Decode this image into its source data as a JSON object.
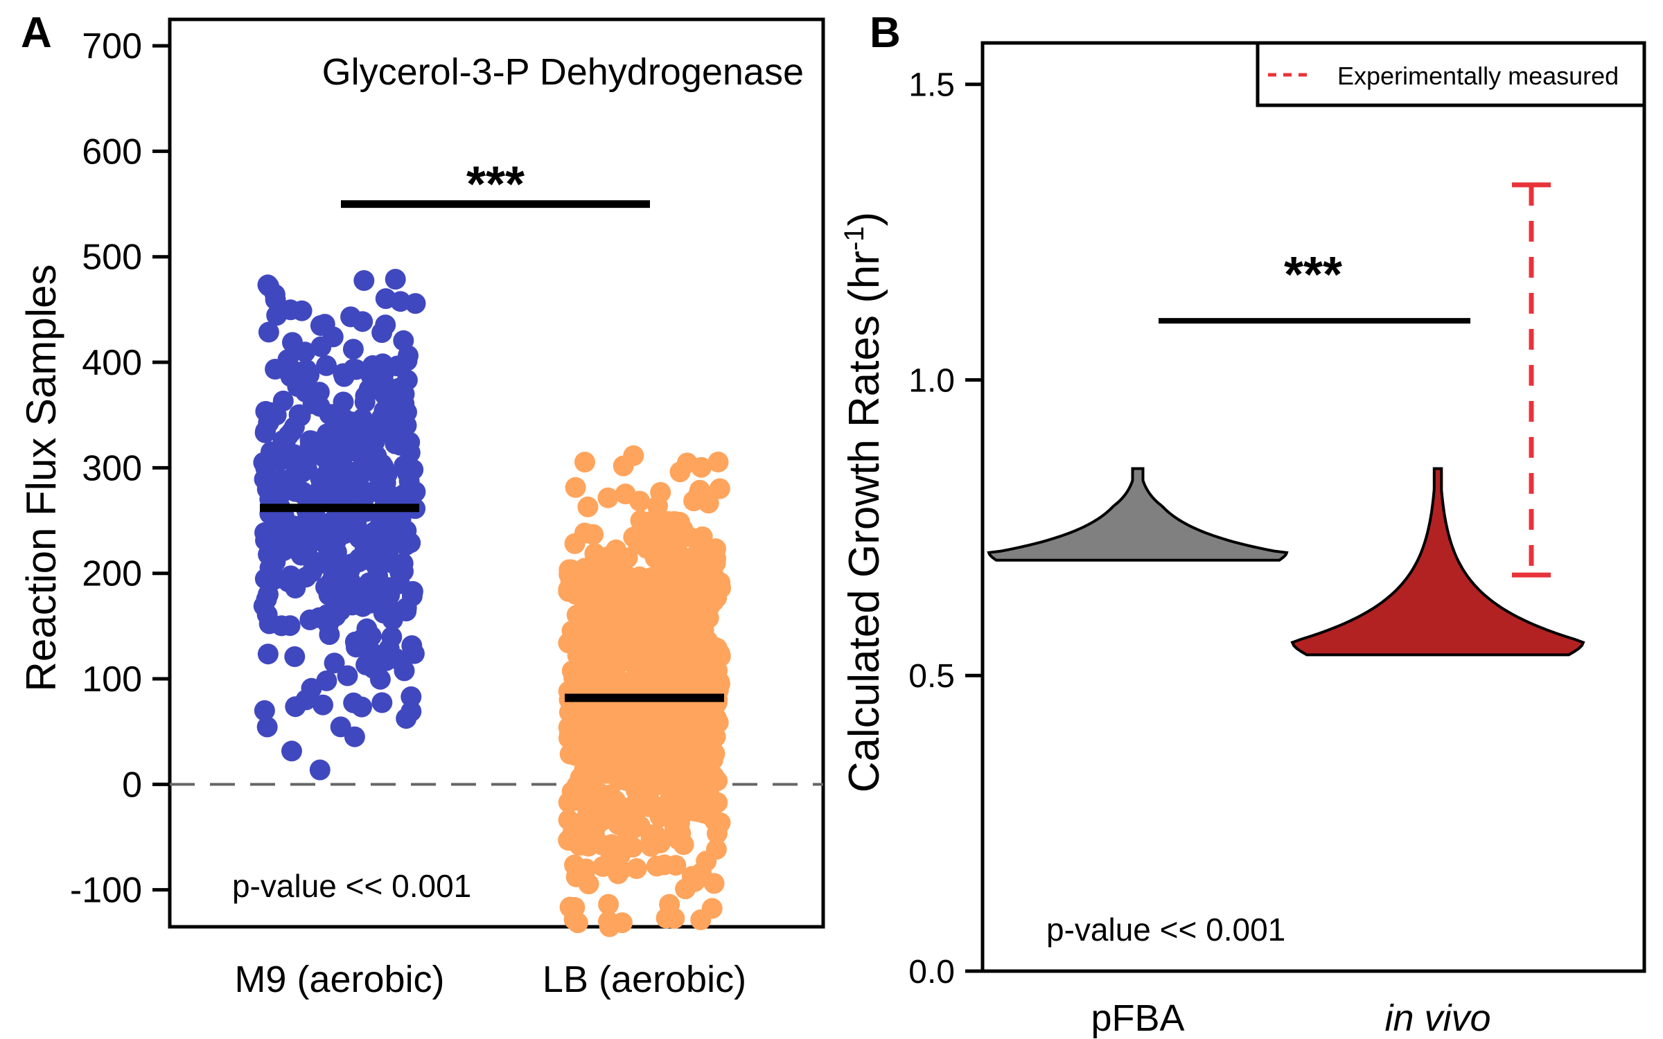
{
  "chart_data": [
    {
      "panel": "A",
      "type": "scatter",
      "title": "Glycerol-3-P Dehydrogenase",
      "ylabel": "Reaction Flux Samples",
      "ylim": [
        -135,
        725
      ],
      "yticks": [
        -100,
        0,
        100,
        200,
        300,
        400,
        500,
        600,
        700
      ],
      "reference_line": 0,
      "significance": "***",
      "significance_bar_y": 550,
      "pvalue_text": "p-value << 0.001",
      "series": [
        {
          "category": "M9 (aerobic)",
          "color": "#4048bf",
          "mean": 262,
          "min": 12,
          "max": 480,
          "n": 420
        },
        {
          "category": "LB (aerobic)",
          "color": "#ffa45c",
          "mean": 82,
          "min": -135,
          "max": 320,
          "n": 900
        }
      ],
      "categories": [
        "M9 (aerobic)",
        "LB (aerobic)"
      ]
    },
    {
      "panel": "B",
      "type": "violin",
      "ylabel": "Calculated Growth Rates (hr⁻¹)",
      "ylim": [
        0,
        1.57
      ],
      "yticks": [
        "0.0",
        "0.5",
        "1.0",
        "1.5"
      ],
      "categories": [
        "pFBA",
        "in vivo"
      ],
      "series": [
        {
          "category": "pFBA",
          "color": "#808080",
          "min": 0.695,
          "mode": 0.71,
          "max": 0.85
        },
        {
          "category": "in vivo",
          "color": "#b22222",
          "min": 0.535,
          "mode": 0.555,
          "max": 0.85
        }
      ],
      "experimental_range": {
        "label": "Experimentally measured",
        "low": 0.67,
        "high": 1.33,
        "color": "#e8333a"
      },
      "significance": "***",
      "significance_bar_y": 1.1,
      "pvalue_text": "p-value << 0.001"
    }
  ]
}
